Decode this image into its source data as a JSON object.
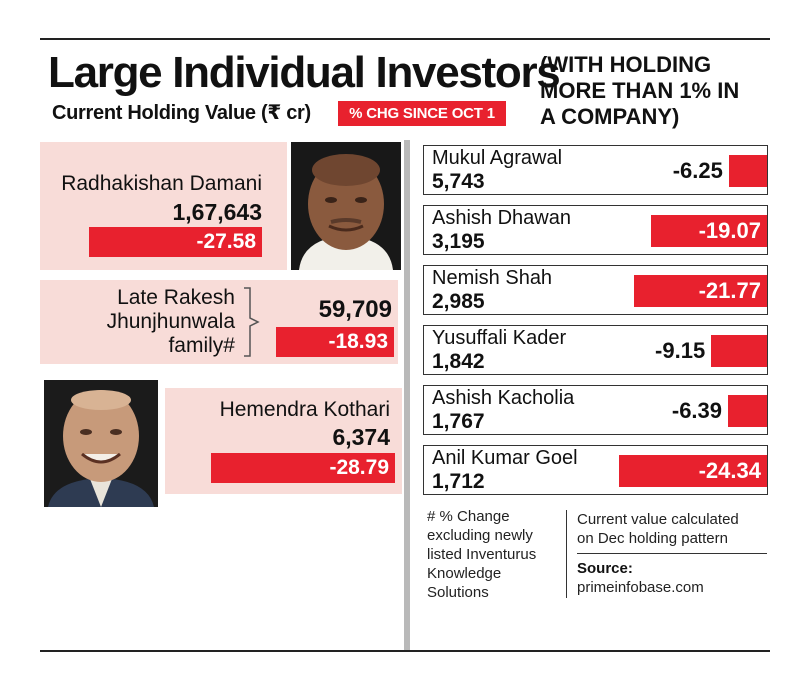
{
  "header": {
    "title": "Large Individual Investors",
    "title_note": "(WITH HOLDING\nMORE THAN 1% IN\nA COMPANY)",
    "subtitle": "Current Holding Value (₹ cr)",
    "chg_label": "% CHG SINCE OCT 1"
  },
  "chart_data": {
    "type": "bar",
    "title": "Large Individual Investors",
    "subtitle": "Current Holding Value (₹ cr)",
    "categories": [
      "Radhakishan Damani",
      "Late Rakesh Jhunjhunwala family#",
      "Hemendra Kothari",
      "Mukul Agrawal",
      "Ashish Dhawan",
      "Nemish Shah",
      "Yusuffali Kader",
      "Ashish Kacholia",
      "Anil Kumar Goel"
    ],
    "series": [
      {
        "name": "Current Holding Value (₹ cr)",
        "values": [
          167643,
          59709,
          6374,
          5743,
          3195,
          2985,
          1842,
          1767,
          1712
        ]
      },
      {
        "name": "% CHG SINCE OCT 1",
        "values": [
          -27.58,
          -18.93,
          -28.79,
          -6.25,
          -19.07,
          -21.77,
          -9.15,
          -6.39,
          -24.34
        ]
      }
    ]
  },
  "left_investors": [
    {
      "name": "Radhakishan Damani",
      "value": "1,67,643",
      "chg": "-27.58"
    },
    {
      "name": "Late Rakesh\nJhunjhunwala\nfamily#",
      "value": "59,709",
      "chg": "-18.93"
    },
    {
      "name": "Hemendra Kothari",
      "value": "6,374",
      "chg": "-28.79"
    }
  ],
  "right_investors": [
    {
      "name": "Mukul Agrawal",
      "value": "5,743",
      "chg": "-6.25",
      "chg_num": -6.25
    },
    {
      "name": "Ashish Dhawan",
      "value": "3,195",
      "chg": "-19.07",
      "chg_num": -19.07
    },
    {
      "name": "Nemish Shah",
      "value": "2,985",
      "chg": "-21.77",
      "chg_num": -21.77
    },
    {
      "name": "Yusuffali Kader",
      "value": "1,842",
      "chg": "-9.15",
      "chg_num": -9.15
    },
    {
      "name": "Ashish Kacholia",
      "value": "1,767",
      "chg": "-6.39",
      "chg_num": -6.39
    },
    {
      "name": "Anil Kumar Goel",
      "value": "1,712",
      "chg": "-24.34",
      "chg_num": -24.34
    }
  ],
  "footer": {
    "footnote": "# % Change\nexcluding newly\nlisted Inventurus\nKnowledge\nSolutions",
    "calc_note": "Current value calculated\non Dec holding pattern",
    "source_label": "Source:",
    "source_value": "primeinfobase.com"
  },
  "colors": {
    "accent_red": "#e8212e",
    "panel_pink": "#f8dcd8"
  }
}
